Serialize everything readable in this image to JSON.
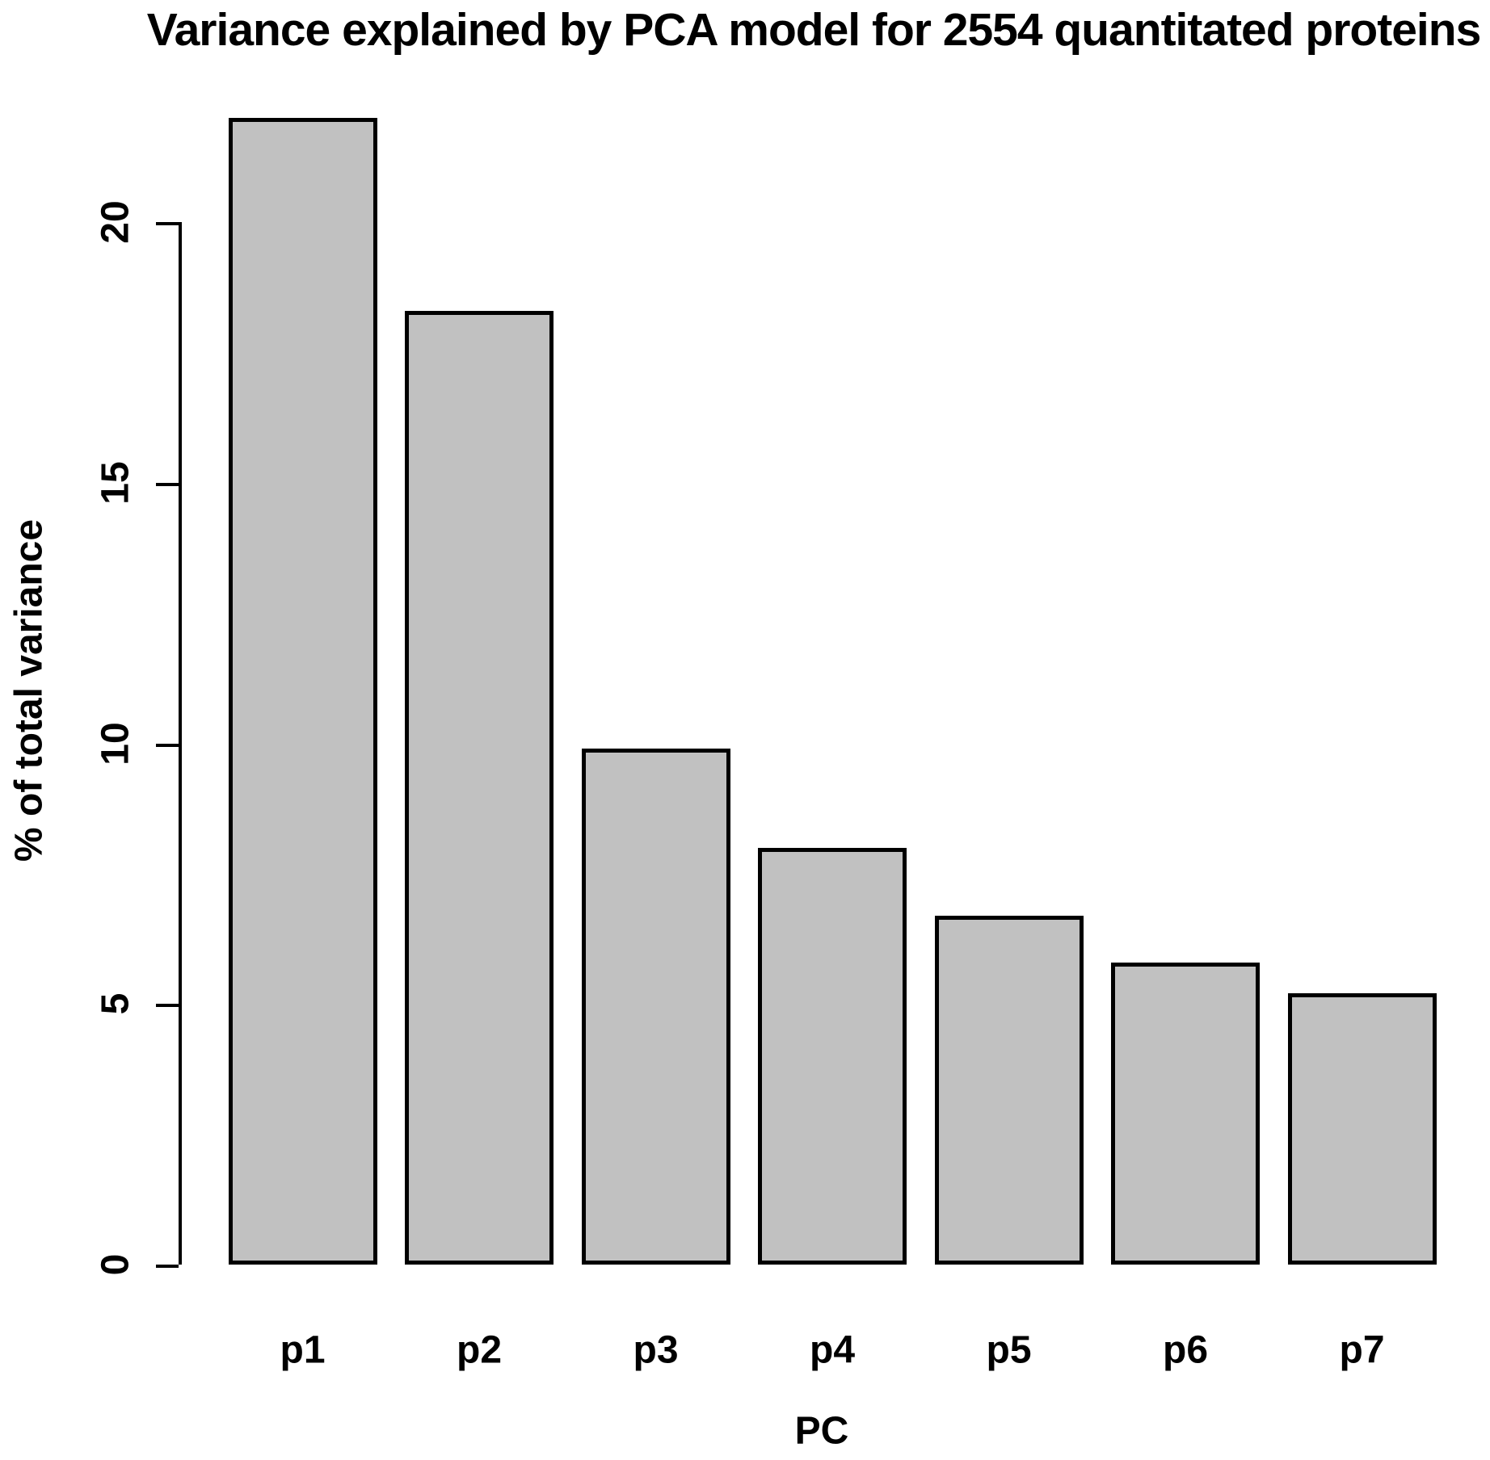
{
  "chart_data": {
    "type": "bar",
    "title": "Variance explained by PCA model for 2554 quantitated proteins",
    "xlabel": "PC",
    "ylabel": "% of total variance",
    "categories": [
      "p1",
      "p2",
      "p3",
      "p4",
      "p5",
      "p6",
      "p7"
    ],
    "values": [
      22.0,
      18.3,
      9.9,
      8.0,
      6.7,
      5.8,
      5.2
    ],
    "yticks": [
      0,
      5,
      10,
      15,
      20
    ],
    "ylim": [
      0,
      22.1
    ],
    "grid": false,
    "legend": null,
    "layout_hint": "single series vertical bars, y axis on left only, no box, no x axis line",
    "colors": {
      "bar_fill": "#c1c1c1",
      "bar_border": "#000000",
      "axis": "#000000",
      "text": "#000000",
      "background": "#ffffff"
    }
  }
}
